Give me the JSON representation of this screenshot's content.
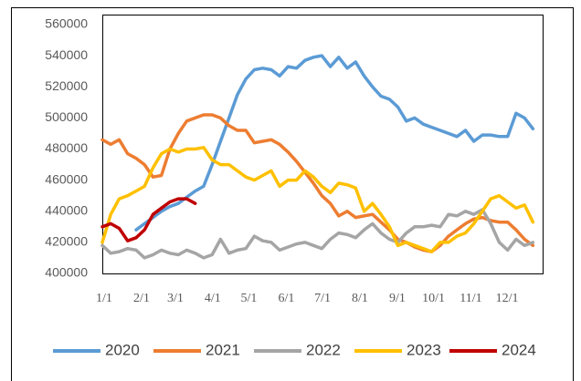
{
  "chart_data": {
    "type": "line",
    "x": [
      0,
      7,
      14,
      21,
      28,
      35,
      42,
      49,
      56,
      63,
      70,
      77,
      84,
      91,
      98,
      105,
      112,
      119,
      126,
      133,
      140,
      147,
      154,
      161,
      168,
      175,
      182,
      189,
      196,
      203,
      210,
      217,
      224,
      231,
      238,
      245,
      252,
      259,
      266,
      273,
      280,
      287,
      294,
      301,
      308,
      315,
      322,
      329,
      336,
      343,
      350,
      357
    ],
    "xlim": [
      0,
      365
    ],
    "xticks": [
      {
        "value": 0,
        "label": "1/1"
      },
      {
        "value": 31,
        "label": "2/1"
      },
      {
        "value": 59,
        "label": "3/1"
      },
      {
        "value": 90,
        "label": "4/1"
      },
      {
        "value": 120,
        "label": "5/1"
      },
      {
        "value": 151,
        "label": "6/1"
      },
      {
        "value": 181,
        "label": "7/1"
      },
      {
        "value": 212,
        "label": "8/1"
      },
      {
        "value": 243,
        "label": "9/1"
      },
      {
        "value": 273,
        "label": "10/1"
      },
      {
        "value": 304,
        "label": "11/1"
      },
      {
        "value": 334,
        "label": "12/1"
      }
    ],
    "ylim": [
      400000,
      560000
    ],
    "yticks": [
      400000,
      420000,
      440000,
      460000,
      480000,
      500000,
      520000,
      540000,
      560000
    ],
    "grid": false,
    "legend": "bottom",
    "series": [
      {
        "name": "2020",
        "color": "#5b9bd5",
        "values": [
          null,
          null,
          null,
          null,
          428000,
          432000,
          436000,
          440000,
          443000,
          445000,
          449000,
          453000,
          456000,
          470000,
          485000,
          500000,
          515000,
          525000,
          531000,
          532000,
          531000,
          527000,
          533000,
          532000,
          537000,
          539000,
          540000,
          533000,
          539000,
          532000,
          536000,
          527000,
          520000,
          514000,
          512000,
          507000,
          498000,
          500000,
          496000,
          494000,
          492000,
          490000,
          488000,
          492000,
          485000,
          489000,
          489000,
          488000,
          488000,
          503000,
          500000,
          493000
        ]
      },
      {
        "name": "2021",
        "color": "#ed7d31",
        "values": [
          486000,
          483000,
          486000,
          477000,
          474000,
          470000,
          462000,
          463000,
          480000,
          490000,
          498000,
          500000,
          502000,
          502000,
          500000,
          495000,
          492000,
          492000,
          484000,
          485000,
          486000,
          483000,
          478000,
          472000,
          465000,
          458000,
          450000,
          445000,
          437000,
          440000,
          436000,
          437000,
          438000,
          433000,
          428000,
          422000,
          420000,
          417000,
          415000,
          414000,
          418000,
          424000,
          428000,
          432000,
          435000,
          436000,
          434000,
          433000,
          433000,
          428000,
          422000,
          418000
        ]
      },
      {
        "name": "2022",
        "color": "#a5a5a5",
        "values": [
          418000,
          413000,
          414000,
          416000,
          415000,
          410000,
          412000,
          415000,
          413000,
          412000,
          415000,
          413000,
          410000,
          412000,
          422000,
          413000,
          415000,
          416000,
          424000,
          421000,
          420000,
          415000,
          417000,
          419000,
          420000,
          418000,
          416000,
          422000,
          426000,
          425000,
          423000,
          428000,
          432000,
          426000,
          422000,
          420000,
          426000,
          430000,
          430000,
          431000,
          430000,
          438000,
          437000,
          440000,
          438000,
          441000,
          432000,
          420000,
          415000,
          422000,
          418000,
          420000
        ]
      },
      {
        "name": "2023",
        "color": "#ffc000",
        "values": [
          420000,
          438000,
          448000,
          450000,
          453000,
          456000,
          468000,
          477000,
          480000,
          478000,
          480000,
          480000,
          481000,
          473000,
          470000,
          470000,
          466000,
          462000,
          460000,
          463000,
          466000,
          456000,
          460000,
          460000,
          466000,
          462000,
          456000,
          452000,
          458000,
          457000,
          455000,
          440000,
          445000,
          438000,
          430000,
          418000,
          420000,
          418000,
          416000,
          414000,
          420000,
          420000,
          424000,
          426000,
          432000,
          440000,
          448000,
          450000,
          446000,
          442000,
          444000,
          433000
        ]
      },
      {
        "name": "2024",
        "color": "#c00000",
        "values": [
          430000,
          432000,
          429000,
          421000,
          423000,
          428000,
          438000,
          442000,
          446000,
          448000,
          448000,
          445000,
          null,
          null,
          null,
          null,
          null,
          null,
          null,
          null,
          null,
          null,
          null,
          null,
          null,
          null,
          null,
          null,
          null,
          null,
          null,
          null,
          null,
          null,
          null,
          null,
          null,
          null,
          null,
          null,
          null,
          null,
          null,
          null,
          null,
          null,
          null,
          null,
          null,
          null,
          null,
          null
        ]
      }
    ]
  }
}
